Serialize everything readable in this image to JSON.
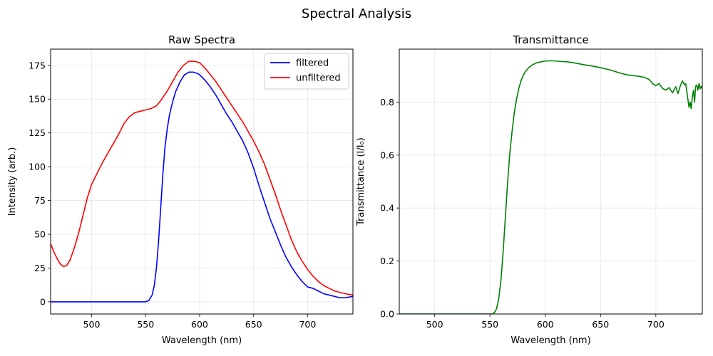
{
  "figure": {
    "title": "Spectral Analysis"
  },
  "chart_data": [
    {
      "type": "line",
      "title": "Raw Spectra",
      "xlabel": "Wavelength (nm)",
      "ylabel": "Intensity (arb.)",
      "xlim": [
        462,
        742
      ],
      "ylim": [
        -9,
        187
      ],
      "xticks": [
        500,
        550,
        600,
        650,
        700
      ],
      "yticks": [
        0,
        25,
        50,
        75,
        100,
        125,
        150,
        175
      ],
      "xtick_labels": [
        "500",
        "550",
        "600",
        "650",
        "700"
      ],
      "ytick_labels": [
        "0",
        "25",
        "50",
        "75",
        "100",
        "125",
        "150",
        "175"
      ],
      "grid": true,
      "legend": {
        "placement": "top-right",
        "entries": [
          "filtered",
          "unfiltered"
        ]
      },
      "series": [
        {
          "name": "filtered",
          "color": "#0000ff",
          "x": [
            462,
            470,
            480,
            490,
            500,
            510,
            520,
            530,
            540,
            550,
            553,
            556,
            558,
            560,
            562,
            564,
            566,
            568,
            570,
            572,
            575,
            578,
            582,
            586,
            590,
            594,
            598,
            600,
            605,
            610,
            615,
            620,
            625,
            630,
            635,
            640,
            645,
            650,
            655,
            660,
            665,
            670,
            675,
            680,
            685,
            690,
            695,
            700,
            705,
            710,
            715,
            720,
            725,
            730,
            735,
            742
          ],
          "y": [
            0,
            0,
            0,
            0,
            0,
            0,
            0,
            0,
            0,
            0,
            1,
            5,
            12,
            25,
            45,
            70,
            95,
            115,
            128,
            138,
            148,
            156,
            163,
            168,
            170,
            170,
            169,
            168,
            164,
            159,
            153,
            146,
            139,
            133,
            126,
            119,
            110,
            99,
            86,
            74,
            62,
            52,
            42,
            33,
            26,
            20,
            15,
            11,
            10,
            8,
            6,
            5,
            4,
            3,
            3,
            4
          ]
        },
        {
          "name": "unfiltered",
          "color": "#ff0000",
          "x": [
            462,
            465,
            468,
            471,
            474,
            477,
            480,
            484,
            488,
            492,
            496,
            500,
            505,
            510,
            515,
            520,
            525,
            530,
            535,
            540,
            545,
            550,
            555,
            560,
            565,
            570,
            575,
            580,
            585,
            590,
            595,
            600,
            605,
            610,
            615,
            620,
            625,
            630,
            635,
            640,
            645,
            650,
            655,
            660,
            665,
            670,
            675,
            680,
            685,
            690,
            695,
            700,
            705,
            710,
            715,
            720,
            725,
            730,
            735,
            742
          ],
          "y": [
            43,
            37,
            32,
            28,
            26,
            27,
            31,
            40,
            51,
            64,
            77,
            87,
            95,
            103,
            110,
            117,
            124,
            132,
            137,
            140,
            141,
            142,
            143,
            145,
            150,
            156,
            163,
            170,
            175,
            178,
            178,
            177,
            173,
            168,
            163,
            157,
            151,
            145,
            139,
            133,
            126,
            119,
            111,
            102,
            91,
            80,
            68,
            57,
            46,
            37,
            30,
            24,
            19,
            15,
            12,
            10,
            8,
            7,
            6,
            5
          ]
        }
      ]
    },
    {
      "type": "line",
      "title": "Transmittance",
      "xlabel": "Wavelength (nm)",
      "ylabel": "Transmittance (I/I₀)",
      "xlim": [
        468,
        742
      ],
      "ylim": [
        0,
        1.0
      ],
      "xticks": [
        500,
        550,
        600,
        650,
        700
      ],
      "yticks": [
        0.0,
        0.2,
        0.4,
        0.6,
        0.8
      ],
      "xtick_labels": [
        "500",
        "550",
        "600",
        "650",
        "700"
      ],
      "ytick_labels": [
        "0.0",
        "0.2",
        "0.4",
        "0.6",
        "0.8"
      ],
      "grid": true,
      "series": [
        {
          "name": "",
          "color": "#008000",
          "x": [
            468,
            480,
            500,
            520,
            540,
            552,
            554,
            556,
            558,
            560,
            562,
            564,
            566,
            568,
            570,
            572,
            574,
            576,
            578,
            580,
            582,
            585,
            588,
            592,
            596,
            600,
            605,
            610,
            615,
            620,
            625,
            630,
            635,
            640,
            645,
            650,
            655,
            660,
            665,
            670,
            675,
            680,
            685,
            690,
            694,
            697,
            700,
            703,
            706,
            709,
            712,
            715,
            718,
            720,
            722,
            724,
            726,
            727,
            728,
            729,
            730,
            731,
            732,
            733,
            734,
            735,
            736,
            737,
            738,
            739,
            740,
            741,
            742
          ],
          "y": [
            0,
            0,
            0,
            0,
            0,
            0,
            0.005,
            0.02,
            0.06,
            0.13,
            0.24,
            0.37,
            0.5,
            0.61,
            0.69,
            0.76,
            0.81,
            0.85,
            0.88,
            0.9,
            0.915,
            0.93,
            0.94,
            0.948,
            0.952,
            0.955,
            0.956,
            0.955,
            0.953,
            0.952,
            0.949,
            0.945,
            0.941,
            0.938,
            0.934,
            0.93,
            0.925,
            0.92,
            0.913,
            0.907,
            0.902,
            0.9,
            0.897,
            0.893,
            0.885,
            0.87,
            0.862,
            0.87,
            0.852,
            0.845,
            0.855,
            0.835,
            0.858,
            0.832,
            0.86,
            0.88,
            0.865,
            0.87,
            0.84,
            0.81,
            0.78,
            0.8,
            0.775,
            0.82,
            0.845,
            0.8,
            0.86,
            0.865,
            0.845,
            0.87,
            0.85,
            0.86,
            0.85
          ]
        }
      ]
    }
  ]
}
